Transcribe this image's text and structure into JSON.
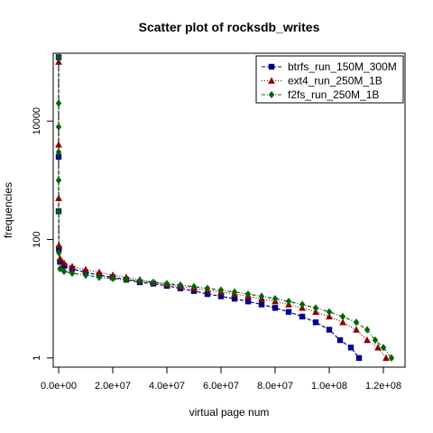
{
  "chart_data": {
    "type": "scatter",
    "title": "Scatter plot of rocksdb_writes",
    "xlabel": "virtual page num",
    "ylabel": "frequencies",
    "xlim": [
      -2000000,
      128000000
    ],
    "ylim": [
      0.7,
      140000
    ],
    "y_scale": "log",
    "x_ticks": [
      0,
      20000000,
      40000000,
      60000000,
      80000000,
      100000000,
      120000000
    ],
    "x_tick_labels": [
      "0.0e+00",
      "2.0e+07",
      "4.0e+07",
      "6.0e+07",
      "8.0e+07",
      "1.0e+08",
      "1.2e+08"
    ],
    "y_ticks": [
      1,
      100,
      10000
    ],
    "y_tick_labels": [
      "1",
      "100",
      "10000"
    ],
    "grid": false,
    "legend_position": "top-right",
    "series": [
      {
        "name": "btrfs_run_150M_300M",
        "color": "#00008b",
        "marker": "square",
        "line": "dashed",
        "points": [
          [
            0,
            120000
          ],
          [
            0,
            2500
          ],
          [
            0,
            300
          ],
          [
            100000,
            70
          ],
          [
            500000,
            42
          ],
          [
            2000000,
            36
          ],
          [
            5000000,
            32
          ],
          [
            10000000,
            28
          ],
          [
            15000000,
            25
          ],
          [
            20000000,
            23
          ],
          [
            25000000,
            21
          ],
          [
            30000000,
            19
          ],
          [
            35000000,
            18
          ],
          [
            40000000,
            16.5
          ],
          [
            45000000,
            15
          ],
          [
            50000000,
            13.5
          ],
          [
            55000000,
            12
          ],
          [
            60000000,
            11
          ],
          [
            65000000,
            10
          ],
          [
            70000000,
            9
          ],
          [
            75000000,
            8
          ],
          [
            80000000,
            7
          ],
          [
            85000000,
            6
          ],
          [
            90000000,
            5
          ],
          [
            95000000,
            4
          ],
          [
            100000000,
            3
          ],
          [
            104000000,
            2
          ],
          [
            108000000,
            1.5
          ],
          [
            111000000,
            1
          ]
        ]
      },
      {
        "name": "ext4_run_250M_1B",
        "color": "#8b0000",
        "marker": "triangle",
        "line": "dotted",
        "points": [
          [
            0,
            100000
          ],
          [
            0,
            4000
          ],
          [
            0,
            500
          ],
          [
            100000,
            80
          ],
          [
            500000,
            48
          ],
          [
            2000000,
            40
          ],
          [
            5000000,
            35
          ],
          [
            10000000,
            31
          ],
          [
            15000000,
            28
          ],
          [
            20000000,
            25
          ],
          [
            25000000,
            23
          ],
          [
            30000000,
            21
          ],
          [
            35000000,
            19
          ],
          [
            40000000,
            17.5
          ],
          [
            45000000,
            16
          ],
          [
            50000000,
            15
          ],
          [
            55000000,
            14
          ],
          [
            60000000,
            13
          ],
          [
            65000000,
            12
          ],
          [
            70000000,
            11
          ],
          [
            75000000,
            10
          ],
          [
            80000000,
            9
          ],
          [
            85000000,
            8
          ],
          [
            90000000,
            7
          ],
          [
            95000000,
            6
          ],
          [
            100000000,
            5
          ],
          [
            105000000,
            4
          ],
          [
            110000000,
            3
          ],
          [
            114000000,
            2
          ],
          [
            118000000,
            1.5
          ],
          [
            121000000,
            1
          ]
        ]
      },
      {
        "name": "f2fs_run_250M_1B",
        "color": "#006400",
        "marker": "diamond",
        "line": "dashdot",
        "points": [
          [
            0,
            120000
          ],
          [
            0,
            20000
          ],
          [
            0,
            8000
          ],
          [
            0,
            3000
          ],
          [
            0,
            1000
          ],
          [
            0,
            300
          ],
          [
            100000,
            60
          ],
          [
            500000,
            32
          ],
          [
            2000000,
            29
          ],
          [
            5000000,
            27
          ],
          [
            10000000,
            25
          ],
          [
            15000000,
            23
          ],
          [
            20000000,
            22
          ],
          [
            25000000,
            21
          ],
          [
            30000000,
            20
          ],
          [
            35000000,
            19
          ],
          [
            40000000,
            18
          ],
          [
            45000000,
            17
          ],
          [
            50000000,
            16
          ],
          [
            55000000,
            15
          ],
          [
            60000000,
            14
          ],
          [
            65000000,
            13
          ],
          [
            70000000,
            12
          ],
          [
            75000000,
            11
          ],
          [
            80000000,
            10
          ],
          [
            85000000,
            9
          ],
          [
            90000000,
            8
          ],
          [
            95000000,
            7
          ],
          [
            100000000,
            6
          ],
          [
            105000000,
            5
          ],
          [
            110000000,
            4
          ],
          [
            114000000,
            3
          ],
          [
            117000000,
            2
          ],
          [
            120000000,
            1.5
          ],
          [
            123000000,
            1
          ]
        ]
      }
    ]
  }
}
